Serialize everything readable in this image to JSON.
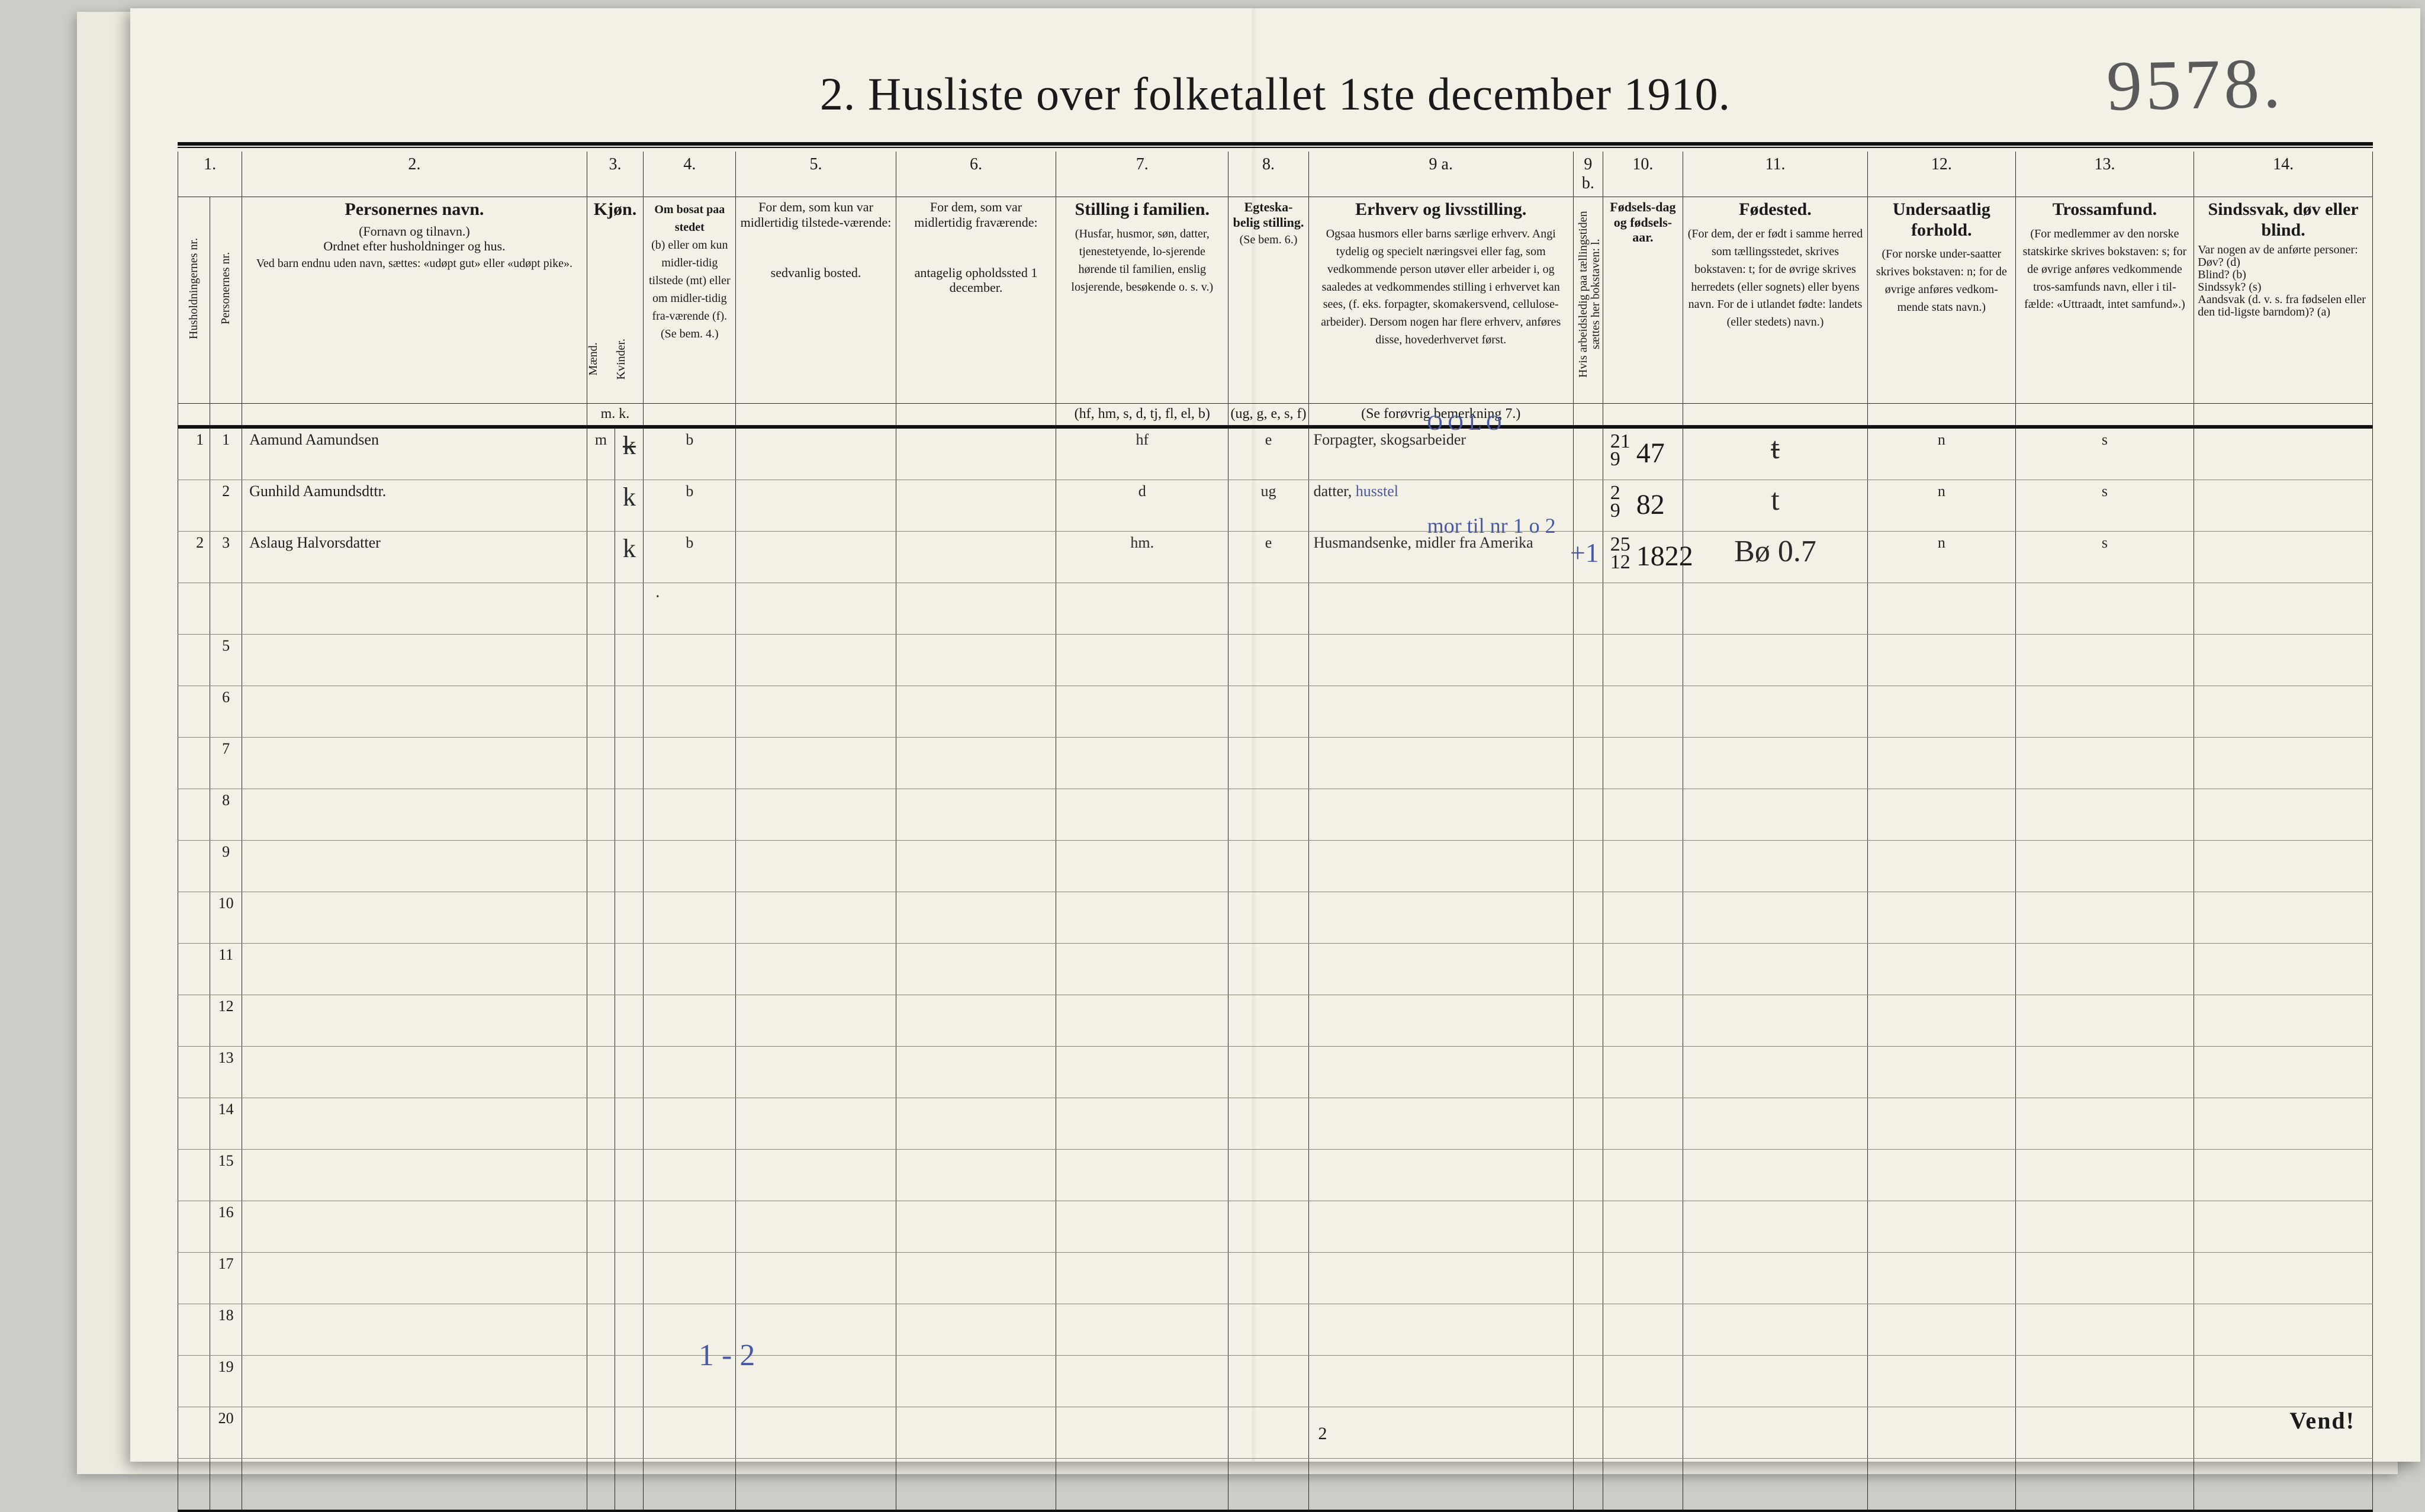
{
  "title": "2.  Husliste over folketallet 1ste december 1910.",
  "handTopRight": "9578.",
  "columnNumbers": [
    "1.",
    "",
    "2.",
    "3.",
    "4.",
    "5.",
    "6.",
    "7.",
    "8.",
    "9 a.",
    "9 b.",
    "10.",
    "11.",
    "12.",
    "13.",
    "14."
  ],
  "headers": {
    "hushold": "Husholdningernes nr.",
    "personnr": "Personernes nr.",
    "navn_title": "Personernes navn.",
    "navn_sub1": "(Fornavn og tilnavn.)",
    "navn_sub2": "Ordnet efter husholdninger og hus.",
    "navn_sub3": "Ved barn endnu uden navn, sættes: «udøpt gut» eller «udøpt pike».",
    "kjon": "Kjøn.",
    "kjon_m": "Mænd.",
    "kjon_k": "Kvinder.",
    "kjon_mk": "m.   k.",
    "bosat_title": "Om bosat paa stedet",
    "bosat_body": "(b) eller om kun midler-tidig tilstede (mt) eller om midler-tidig fra-værende (f). (Se bem. 4.)",
    "midtil_title": "For dem, som kun var midlertidig tilstede-værende:",
    "midtil_body": "sedvanlig bosted.",
    "midfra_title": "For dem, som var midlertidig fraværende:",
    "midfra_body": "antagelig opholdssted 1 december.",
    "still_title": "Stilling i familien.",
    "still_body": "(Husfar, husmor, søn, datter, tjenestetyende, lo-sjerende hørende til familien, enslig losjerende, besøkende o. s. v.)",
    "still_foot": "(hf, hm, s, d, tj, fl, el, b)",
    "egte_title": "Egteska-belig stilling.",
    "egte_body": "(Se bem. 6.)",
    "egte_foot": "(ug, g, e, s, f)",
    "erhv_title": "Erhverv og livsstilling.",
    "erhv_body": "Ogsaa husmors eller barns særlige erhverv. Angi tydelig og specielt næringsvei eller fag, som vedkommende person utøver eller arbeider i, og saaledes at vedkommendes stilling i erhvervet kan sees, (f. eks. forpagter, skomakersvend, cellulose-arbeider). Dersom nogen har flere erhverv, anføres disse, hovederhvervet først.",
    "erhv_foot": "(Se forøvrig bemerkning 7.)",
    "n9b": "Hvis arbeidsledig paa tællingstiden sættes her bokstaven: l.",
    "fdag_title": "Fødsels-dag og fødsels-aar.",
    "fsted_title": "Fødested.",
    "fsted_body": "(For dem, der er født i samme herred som tællingsstedet, skrives bokstaven: t; for de øvrige skrives herredets (eller sognets) eller byens navn. For de i utlandet fødte: landets (eller stedets) navn.)",
    "under_title": "Undersaatlig forhold.",
    "under_body": "(For norske under-saatter skrives bokstaven: n; for de øvrige anføres vedkom-mende stats navn.)",
    "tros_title": "Trossamfund.",
    "tros_body": "(For medlemmer av den norske statskirke skrives bokstaven: s; for de øvrige anføres vedkommende tros-samfunds navn, eller i til-fælde: «Uttraadt, intet samfund».)",
    "sind_title": "Sindssvak, døv eller blind.",
    "sind_body": "Var nogen av de anførte personer:\nDøv?        (d)\nBlind?      (b)\nSindssyk?  (s)\nAandsvak (d. v. s. fra fødselen eller den tid-ligste barndom)?  (a)"
  },
  "rows": [
    {
      "haus": "1",
      "pers": "1",
      "name": "Aamund Aamundsen",
      "m": "m",
      "k": "k",
      "bosat": "b",
      "still": "hf",
      "egte": "e",
      "erhv": "Forpagter, skogsarbeider",
      "erhvOver": "O O L O",
      "fd_top": "21",
      "fd_bot": "9",
      "fd_year": "47",
      "fsted": "t",
      "fsted_strike": true,
      "under": "n",
      "tros": "s"
    },
    {
      "haus": "",
      "pers": "2",
      "name": "Gunhild Aamundsdttr.",
      "m": "",
      "k": "k",
      "bosat": "b",
      "still": "d",
      "egte": "ug",
      "erhv": "datter, husstel",
      "erhvBlueTail": true,
      "fd_top": "2",
      "fd_bot": "9",
      "fd_year": "82",
      "fsted": "t",
      "under": "n",
      "tros": "s"
    },
    {
      "haus": "2",
      "pers": "3",
      "name": "Aslaug Halvorsdatter",
      "m": "",
      "k": "k",
      "bosat": "b",
      "still": "hm.",
      "egte": "e",
      "erhv": "Husmandsenke, midler fra Amerika",
      "erhvOver": "mor til nr 1 o 2",
      "fd_top": "25",
      "fd_bot": "12",
      "fd_year": "1822",
      "n9b": "+1",
      "fsted": "Bø  0.7",
      "under": "n",
      "tros": "s"
    }
  ],
  "emptyRowStart": 4,
  "emptyRowEnd": 20,
  "bottomTally": "1 - 2",
  "pageNumber": "2",
  "vend": "Vend!"
}
